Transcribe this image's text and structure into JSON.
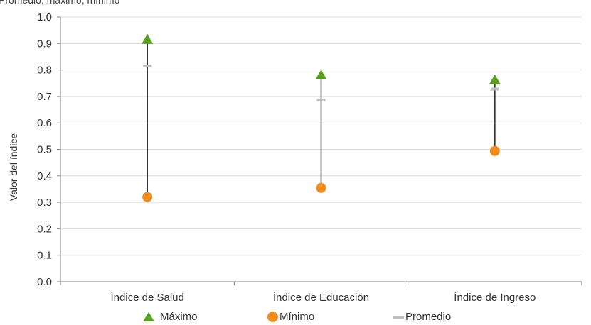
{
  "subtitle": "Promedio, máximo, mínimo",
  "chart_data": {
    "type": "scatter",
    "subtitle": "Promedio, máximo, mínimo",
    "ylabel": "Valor del índice",
    "xlabel": "",
    "ylim": [
      0,
      1.0
    ],
    "yticks": [
      "0.0",
      "0.1",
      "0.2",
      "0.3",
      "0.4",
      "0.5",
      "0.6",
      "0.7",
      "0.8",
      "0.9",
      "1.0"
    ],
    "grid": true,
    "categories": [
      "Índice de Salud",
      "Índice de Educación",
      "Índice de Ingreso"
    ],
    "series": [
      {
        "name": "Máximo",
        "values": [
          0.915,
          0.78,
          0.762
        ]
      },
      {
        "name": "Mínimo",
        "values": [
          0.32,
          0.354,
          0.494
        ]
      },
      {
        "name": "Promedio",
        "values": [
          0.815,
          0.686,
          0.728
        ]
      }
    ],
    "colors": {
      "maximo": "#5a9e1d",
      "minimo": "#f28c1c",
      "promedio": "#bdbdbd",
      "range_line": "#222222",
      "grid": "#d9d9d9"
    },
    "legend": [
      "Máximo",
      "Mínimo",
      "Promedio"
    ],
    "legend_position": "bottom"
  }
}
